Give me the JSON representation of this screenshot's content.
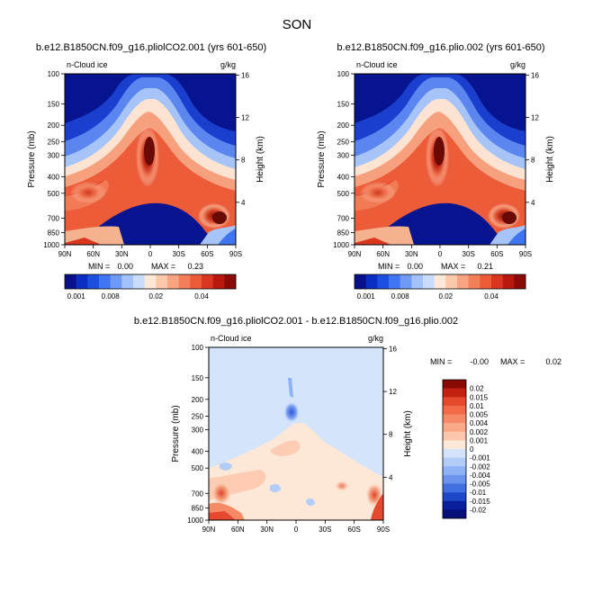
{
  "figure_title": "SON",
  "chart_data": [
    {
      "type": "heatmap",
      "title": "b.e12.B1850CN.f09_g16.pliolCO2.001 (yrs 601-650)",
      "variable": "n-Cloud ice",
      "units": "g/kg",
      "xlabel": "",
      "ylabel": "Pressure (mb)",
      "right_ylabel": "Height (km)",
      "x_ticks": [
        "90N",
        "60N",
        "30N",
        "0",
        "30S",
        "60S",
        "90S"
      ],
      "y_ticks": [
        100,
        150,
        200,
        250,
        300,
        400,
        500,
        700,
        850,
        1000
      ],
      "height_ticks": [
        4,
        8,
        12,
        16
      ],
      "ylim": [
        1000,
        100
      ],
      "min_label": "MIN =",
      "min_value": "0.00",
      "max_label": "MAX =",
      "max_value": "0.23",
      "colorbar": {
        "orientation": "horizontal",
        "labels": [
          "0.001",
          "0.008",
          "0.02",
          "0.04"
        ],
        "colors": [
          "#08108c",
          "#0a2ec2",
          "#1c4fe0",
          "#3f74f2",
          "#6e99f7",
          "#a3c1fa",
          "#c9dcfc",
          "#fde7d6",
          "#fbc8aa",
          "#f8a481",
          "#f47e58",
          "#ec5a38",
          "#d9351f",
          "#b8170f",
          "#8a0a05"
        ]
      }
    },
    {
      "type": "heatmap",
      "title": "b.e12.B1850CN.f09_g16.plio.002 (yrs 601-650)",
      "variable": "n-Cloud ice",
      "units": "g/kg",
      "xlabel": "",
      "ylabel": "Pressure (mb)",
      "right_ylabel": "Height (km)",
      "x_ticks": [
        "90N",
        "60N",
        "30N",
        "0",
        "30S",
        "60S",
        "90S"
      ],
      "y_ticks": [
        100,
        150,
        200,
        250,
        300,
        400,
        500,
        700,
        850,
        1000
      ],
      "height_ticks": [
        4,
        8,
        12,
        16
      ],
      "ylim": [
        1000,
        100
      ],
      "min_label": "MIN =",
      "min_value": "0.00",
      "max_label": "MAX =",
      "max_value": "0.21",
      "colorbar": {
        "orientation": "horizontal",
        "labels": [
          "0.001",
          "0.008",
          "0.02",
          "0.04"
        ],
        "colors": [
          "#08108c",
          "#0a2ec2",
          "#1c4fe0",
          "#3f74f2",
          "#6e99f7",
          "#a3c1fa",
          "#c9dcfc",
          "#fde7d6",
          "#fbc8aa",
          "#f8a481",
          "#f47e58",
          "#ec5a38",
          "#d9351f",
          "#b8170f",
          "#8a0a05"
        ]
      }
    },
    {
      "type": "heatmap",
      "title": "b.e12.B1850CN.f09_g16.pliolCO2.001 - b.e12.B1850CN.f09_g16.plio.002",
      "variable": "n-Cloud ice",
      "units": "g/kg",
      "xlabel": "",
      "ylabel": "Pressure (mb)",
      "right_ylabel": "Height (km)",
      "x_ticks": [
        "90N",
        "60N",
        "30N",
        "0",
        "30S",
        "60S",
        "90S"
      ],
      "y_ticks": [
        100,
        150,
        200,
        250,
        300,
        400,
        500,
        700,
        850,
        1000
      ],
      "height_ticks": [
        4,
        8,
        12,
        16
      ],
      "ylim": [
        1000,
        100
      ],
      "min_label": "MIN =",
      "min_value": "-0.00",
      "max_label": "MAX =",
      "max_value": "0.02",
      "colorbar": {
        "orientation": "vertical",
        "labels": [
          "0.02",
          "0.015",
          "0.01",
          "0.005",
          "0.004",
          "0.002",
          "0.001",
          "0",
          "-0.001",
          "-0.002",
          "-0.004",
          "-0.005",
          "-0.01",
          "-0.015",
          "-0.02"
        ],
        "colors": [
          "#8a0a05",
          "#c3200f",
          "#e54a2f",
          "#f26a48",
          "#f78a66",
          "#f9a888",
          "#fbc6ab",
          "#fde7d7",
          "#d4e4fb",
          "#b2cdf8",
          "#8eb2f5",
          "#6a93ee",
          "#4270e0",
          "#1f48c8",
          "#0a1f9c",
          "#061078"
        ]
      }
    }
  ]
}
